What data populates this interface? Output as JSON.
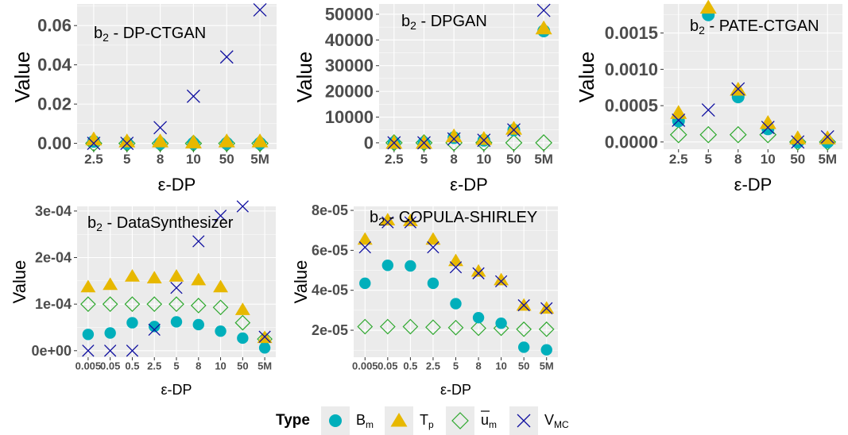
{
  "colors": {
    "panel_bg": "#ebebeb",
    "grid": "#ffffff",
    "B_m": "#00afbb",
    "T_p": "#e7b800",
    "u_m": "#2ea82e",
    "V_MC": "#1010a0"
  },
  "legend": {
    "title": "Type",
    "items": [
      {
        "key": "B_m",
        "base": "B",
        "sub": "m",
        "shape": "circle"
      },
      {
        "key": "T_p",
        "base": "T",
        "sub": "p",
        "shape": "triangle"
      },
      {
        "key": "u_m",
        "base": "u",
        "sub": "m",
        "shape": "diamond",
        "overline": true
      },
      {
        "key": "V_MC",
        "base": "V",
        "sub": "MC",
        "shape": "cross"
      }
    ]
  },
  "chart_data": [
    {
      "type": "scatter",
      "title_base": "b",
      "title_sub": "2",
      "title_rest": " - DP-CTGAN",
      "xlabel": "ε-DP",
      "ylabel": "Value",
      "categories": [
        "2.5",
        "5",
        "8",
        "10",
        "50",
        "5M"
      ],
      "ylim": [
        -0.003,
        0.071
      ],
      "yticks": [
        0,
        0.02,
        0.04,
        0.06
      ],
      "ytick_labels": [
        "0.00",
        "0.02",
        "0.04",
        "0.06"
      ],
      "series": [
        {
          "name": "B_m",
          "values": [
            0.001,
            0.0,
            0.0,
            0.0,
            0.0,
            0.0
          ]
        },
        {
          "name": "T_p",
          "values": [
            0.002,
            0.001,
            0.001,
            0.0005,
            0.001,
            0.001
          ]
        },
        {
          "name": "u_m",
          "values": [
            0.0,
            0.0,
            0.0,
            0.0,
            0.0,
            0.0
          ]
        },
        {
          "name": "V_MC",
          "values": [
            0.0,
            0.0,
            0.008,
            0.024,
            0.044,
            0.068
          ]
        }
      ]
    },
    {
      "type": "scatter",
      "title_base": "b",
      "title_sub": "2",
      "title_rest": " - DPGAN",
      "xlabel": "ε-DP",
      "ylabel": "Value",
      "categories": [
        "2.5",
        "5",
        "8",
        "10",
        "50",
        "5M"
      ],
      "ylim": [
        -2500,
        54000
      ],
      "yticks": [
        0,
        10000,
        20000,
        30000,
        40000,
        50000
      ],
      "ytick_labels": [
        "0",
        "10000",
        "20000",
        "30000",
        "40000",
        "50000"
      ],
      "series": [
        {
          "name": "B_m",
          "values": [
            0,
            0,
            2000,
            1000,
            5000,
            43500
          ]
        },
        {
          "name": "T_p",
          "values": [
            0,
            0,
            2500,
            1500,
            5500,
            44500
          ]
        },
        {
          "name": "u_m",
          "values": [
            0,
            0,
            0,
            0,
            0,
            0
          ]
        },
        {
          "name": "V_MC",
          "values": [
            0,
            0,
            1500,
            1000,
            5000,
            51500
          ]
        }
      ]
    },
    {
      "type": "scatter",
      "title_base": "b",
      "title_sub": "2",
      "title_rest": " - PATE-CTGAN",
      "xlabel": "ε-DP",
      "ylabel": "Value",
      "categories": [
        "2.5",
        "5",
        "8",
        "10",
        "50",
        "5M"
      ],
      "ylim": [
        -0.0001,
        0.0019
      ],
      "yticks": [
        0,
        0.0005,
        0.001,
        0.0015
      ],
      "ytick_labels": [
        "0.0000",
        "0.0005",
        "0.0010",
        "0.0015"
      ],
      "series": [
        {
          "name": "B_m",
          "values": [
            0.00029,
            0.00175,
            0.00062,
            0.00018,
            0.0,
            0.0
          ]
        },
        {
          "name": "T_p",
          "values": [
            0.0004,
            0.00185,
            0.00072,
            0.00026,
            5e-05,
            5e-05
          ]
        },
        {
          "name": "u_m",
          "values": [
            0.0001,
            0.0001,
            0.0001,
            0.0001,
            0.0,
            0.0
          ]
        },
        {
          "name": "V_MC",
          "values": [
            0.0003,
            0.00044,
            0.00073,
            0.0002,
            0.0,
            7e-05
          ]
        }
      ]
    },
    {
      "type": "scatter",
      "title_base": "b",
      "title_sub": "2",
      "title_rest": " - DataSynthesizer",
      "xlabel": "ε-DP",
      "ylabel": "Value",
      "categories": [
        "0.005",
        "0.05",
        "0.5",
        "2.5",
        "5",
        "8",
        "10",
        "50",
        "5M"
      ],
      "ylim": [
        -1.4e-05,
        0.00031
      ],
      "yticks": [
        0,
        0.0001,
        0.0002,
        0.0003
      ],
      "ytick_labels": [
        "0e+00",
        "1e-04",
        "2e-04",
        "3e-04"
      ],
      "series": [
        {
          "name": "B_m",
          "values": [
            3.5e-05,
            3.8e-05,
            6e-05,
            5.2e-05,
            6.2e-05,
            5.6e-05,
            4.2e-05,
            2.7e-05,
            6e-06
          ]
        },
        {
          "name": "T_p",
          "values": [
            0.000137,
            0.000142,
            0.00016,
            0.000156,
            0.00016,
            0.000152,
            0.000137,
            8.8e-05,
            2.8e-05
          ]
        },
        {
          "name": "u_m",
          "values": [
            0.0001,
            0.0001,
            0.0001,
            0.0001,
            0.0001,
            9.7e-05,
            9.3e-05,
            6e-05,
            2.5e-05
          ]
        },
        {
          "name": "V_MC",
          "values": [
            0.0,
            0.0,
            0.0,
            4.5e-05,
            0.000135,
            0.000235,
            0.00029,
            0.00031,
            3e-05
          ]
        }
      ]
    },
    {
      "type": "scatter",
      "title_base": "b",
      "title_sub": "2",
      "title_rest": " - COPULA-SHIRLEY",
      "xlabel": "ε-DP",
      "ylabel": "Value",
      "categories": [
        "0.005",
        "0.05",
        "0.5",
        "2.5",
        "5",
        "8",
        "10",
        "50",
        "5M"
      ],
      "ylim": [
        6.5e-06,
        8.2e-05
      ],
      "yticks": [
        2e-05,
        4e-05,
        6e-05,
        8e-05
      ],
      "ytick_labels": [
        "2e-05",
        "4e-05",
        "6e-05",
        "8e-05"
      ],
      "series": [
        {
          "name": "B_m",
          "values": [
            4.35e-05,
            5.25e-05,
            5.22e-05,
            4.35e-05,
            3.33e-05,
            2.63e-05,
            2.35e-05,
            1.15e-05,
            1.02e-05
          ]
        },
        {
          "name": "T_p",
          "values": [
            6.55e-05,
            7.52e-05,
            7.48e-05,
            6.55e-05,
            5.48e-05,
            4.95e-05,
            4.52e-05,
            3.25e-05,
            3.1e-05
          ]
        },
        {
          "name": "u_m",
          "values": [
            2.18e-05,
            2.18e-05,
            2.18e-05,
            2.15e-05,
            2.13e-05,
            2.1e-05,
            2.1e-05,
            2.05e-05,
            2.05e-05
          ]
        },
        {
          "name": "V_MC",
          "values": [
            6.15e-05,
            7.4e-05,
            7.4e-05,
            6.15e-05,
            5.15e-05,
            4.85e-05,
            4.45e-05,
            3.25e-05,
            3.1e-05
          ]
        }
      ]
    }
  ]
}
